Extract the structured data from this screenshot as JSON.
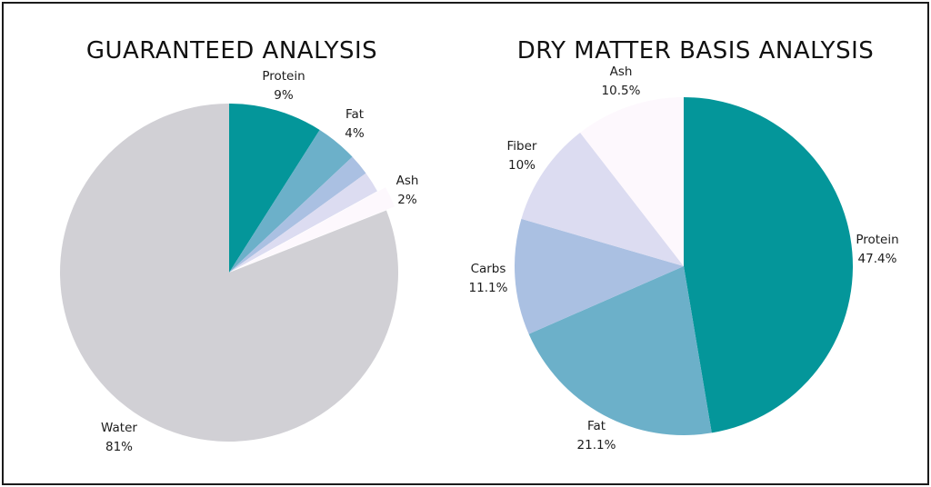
{
  "colors": {
    "protein": "#04969a",
    "fat": "#6cb0c9",
    "carbs": "#aac0e2",
    "fiber": "#dcdcf1",
    "ash": "#fdf8fd",
    "water": "#d1d0d5",
    "border": "#1b1b1b"
  },
  "chart_data": [
    {
      "type": "pie",
      "title": "GUARANTEED ANALYSIS",
      "slices": [
        {
          "name": "Protein",
          "value": 9,
          "percent_label": "9%",
          "color_key": "protein",
          "show_label": true
        },
        {
          "name": "Fat",
          "value": 4,
          "percent_label": "4%",
          "color_key": "fat",
          "show_label": true
        },
        {
          "name": "",
          "value": 2,
          "percent_label": "",
          "color_key": "carbs",
          "show_label": false
        },
        {
          "name": "",
          "value": 2,
          "percent_label": "",
          "color_key": "fiber",
          "show_label": false
        },
        {
          "name": "Ash",
          "value": 2,
          "percent_label": "2%",
          "color_key": "ash",
          "show_label": true
        },
        {
          "name": "Water",
          "value": 81,
          "percent_label": "81%",
          "color_key": "water",
          "show_label": true
        }
      ]
    },
    {
      "type": "pie",
      "title": "DRY MATTER BASIS ANALYSIS",
      "slices": [
        {
          "name": "Protein",
          "value": 47.4,
          "percent_label": "47.4%",
          "color_key": "protein",
          "show_label": true
        },
        {
          "name": "Fat",
          "value": 21.1,
          "percent_label": "21.1%",
          "color_key": "fat",
          "show_label": true
        },
        {
          "name": "Carbs",
          "value": 11.1,
          "percent_label": "11.1%",
          "color_key": "carbs",
          "show_label": true
        },
        {
          "name": "Fiber",
          "value": 10,
          "percent_label": "10%",
          "color_key": "fiber",
          "show_label": true
        },
        {
          "name": "Ash",
          "value": 10.5,
          "percent_label": "10.5%",
          "color_key": "ash",
          "show_label": true
        }
      ]
    }
  ]
}
